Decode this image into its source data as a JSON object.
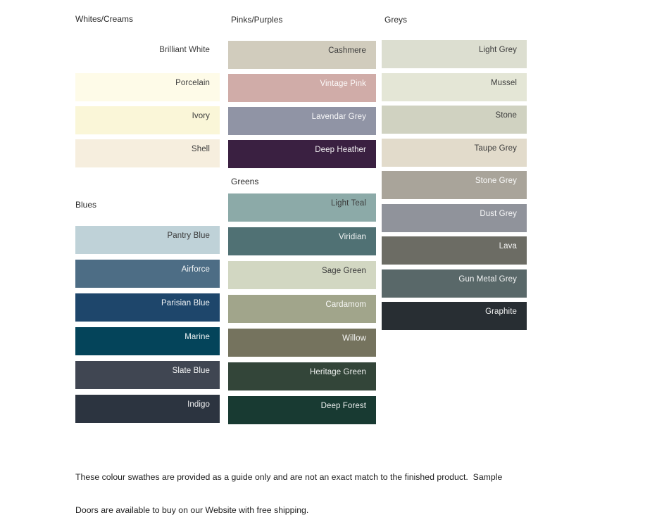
{
  "page": {
    "background": "#FFFFFF",
    "label_color_dark": "#3C3C3C",
    "label_color_light": "#FFFFFF"
  },
  "columns": [
    {
      "sections": [
        {
          "key": "whites",
          "title": "Whites/Creams",
          "swatches": [
            {
              "name": "Brilliant White",
              "color": "#FFFFFF",
              "text": "dark"
            },
            {
              "name": "Porcelain",
              "color": "#FEFBE8",
              "text": "dark"
            },
            {
              "name": "Ivory",
              "color": "#FAF6D8",
              "text": "dark"
            },
            {
              "name": "Shell",
              "color": "#F6EEDE",
              "text": "dark"
            }
          ]
        },
        {
          "key": "blues",
          "title": "Blues",
          "swatches": [
            {
              "name": "Pantry Blue",
              "color": "#BFD2D8",
              "text": "dark"
            },
            {
              "name": "Airforce",
              "color": "#4D6D85",
              "text": "light"
            },
            {
              "name": "Parisian Blue",
              "color": "#1E466B",
              "text": "light"
            },
            {
              "name": "Marine",
              "color": "#04445A",
              "text": "light"
            },
            {
              "name": "Slate Blue",
              "color": "#404652",
              "text": "light"
            },
            {
              "name": "Indigo",
              "color": "#2C3440",
              "text": "light"
            }
          ]
        }
      ]
    },
    {
      "sections": [
        {
          "key": "pinks",
          "title": "Pinks/Purples",
          "swatches": [
            {
              "name": "Cashmere",
              "color": "#D1CCBD",
              "text": "dark"
            },
            {
              "name": "Vintage Pink",
              "color": "#D0ACA8",
              "text": "light"
            },
            {
              "name": "Lavendar Grey",
              "color": "#9094A5",
              "text": "light"
            },
            {
              "name": "Deep Heather",
              "color": "#3A2041",
              "text": "light"
            }
          ]
        },
        {
          "key": "greens",
          "title": "Greens",
          "swatches": [
            {
              "name": "Light Teal",
              "color": "#8CAAA8",
              "text": "dark"
            },
            {
              "name": "Viridian",
              "color": "#507174",
              "text": "light"
            },
            {
              "name": "Sage Green",
              "color": "#D2D7C2",
              "text": "dark"
            },
            {
              "name": "Cardamom",
              "color": "#A1A58B",
              "text": "light"
            },
            {
              "name": "Willow",
              "color": "#75735E",
              "text": "light"
            },
            {
              "name": "Heritage Green",
              "color": "#334539",
              "text": "light"
            },
            {
              "name": "Deep Forest",
              "color": "#183A32",
              "text": "light"
            }
          ]
        }
      ]
    },
    {
      "sections": [
        {
          "key": "greys",
          "title": "Greys",
          "swatches": [
            {
              "name": "Light Grey",
              "color": "#DCDED0",
              "text": "dark"
            },
            {
              "name": "Mussel",
              "color": "#E4E6D6",
              "text": "dark"
            },
            {
              "name": "Stone",
              "color": "#D0D2C1",
              "text": "dark"
            },
            {
              "name": "Taupe Grey",
              "color": "#E2DBCB",
              "text": "dark"
            },
            {
              "name": "Stone Grey",
              "color": "#A9A49A",
              "text": "light"
            },
            {
              "name": "Dust Grey",
              "color": "#90939B",
              "text": "light"
            },
            {
              "name": "Lava",
              "color": "#6C6C64",
              "text": "light"
            },
            {
              "name": "Gun Metal Grey",
              "color": "#596869",
              "text": "light"
            },
            {
              "name": "Graphite",
              "color": "#282E33",
              "text": "light"
            }
          ]
        }
      ]
    }
  ],
  "footer": {
    "lines": [
      "These colour swathes are provided as a guide only and are not an exact match to the finished product.  Sample",
      "Doors are available to buy on our Website with free shipping."
    ]
  }
}
